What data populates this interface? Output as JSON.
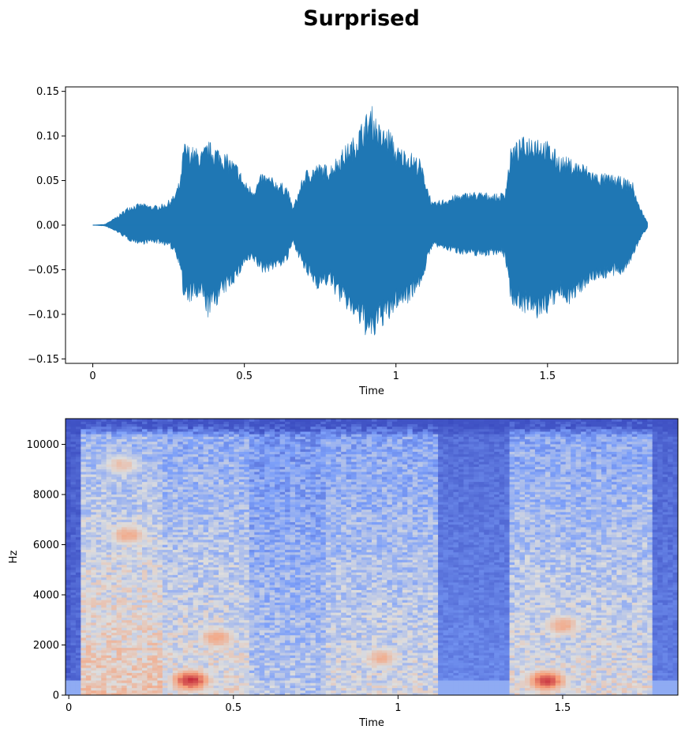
{
  "figure_title": "Surprised",
  "colors": {
    "waveform": "#1f77b4",
    "spec_low": "#3b4cc0",
    "spec_mid": "#dddddd",
    "spec_high": "#b40426",
    "axes": "#000000"
  },
  "chart_data": [
    {
      "type": "area",
      "name": "waveform",
      "title": "",
      "xlabel": "Time",
      "ylabel": "",
      "xlim": [
        -0.09,
        1.93
      ],
      "ylim": [
        -0.155,
        0.155
      ],
      "x_ticks": [
        0,
        0.5,
        1,
        1.5
      ],
      "x_tick_labels": [
        "0",
        "0.5",
        "1",
        "1.5"
      ],
      "y_ticks": [
        0.15,
        0.1,
        0.05,
        0.0,
        -0.05,
        -0.1,
        -0.15
      ],
      "y_tick_labels": [
        "0.15",
        "0.10",
        "0.05",
        "0.00",
        "−0.05",
        "−0.10",
        "−0.15"
      ],
      "grid": false,
      "envelope": {
        "t": [
          0.0,
          0.04,
          0.08,
          0.12,
          0.16,
          0.2,
          0.24,
          0.27,
          0.29,
          0.3,
          0.32,
          0.36,
          0.38,
          0.41,
          0.45,
          0.48,
          0.5,
          0.53,
          0.56,
          0.6,
          0.64,
          0.66,
          0.7,
          0.74,
          0.78,
          0.82,
          0.86,
          0.9,
          0.92,
          0.95,
          0.98,
          1.0,
          1.04,
          1.08,
          1.1,
          1.12,
          1.16,
          1.2,
          1.25,
          1.3,
          1.34,
          1.36,
          1.38,
          1.42,
          1.46,
          1.5,
          1.54,
          1.58,
          1.62,
          1.66,
          1.7,
          1.74,
          1.78,
          1.8,
          1.83
        ],
        "pos": [
          0.0,
          0.001,
          0.01,
          0.022,
          0.025,
          0.022,
          0.025,
          0.035,
          0.055,
          0.095,
          0.09,
          0.085,
          0.095,
          0.09,
          0.078,
          0.068,
          0.05,
          0.042,
          0.06,
          0.052,
          0.045,
          0.02,
          0.062,
          0.07,
          0.068,
          0.085,
          0.1,
          0.125,
          0.135,
          0.11,
          0.11,
          0.09,
          0.085,
          0.075,
          0.05,
          0.025,
          0.03,
          0.035,
          0.038,
          0.037,
          0.035,
          0.04,
          0.09,
          0.1,
          0.105,
          0.095,
          0.08,
          0.075,
          0.07,
          0.06,
          0.058,
          0.055,
          0.05,
          0.025,
          0.003
        ],
        "neg": [
          0.0,
          0.001,
          0.008,
          0.018,
          0.022,
          0.02,
          0.023,
          0.03,
          0.05,
          0.09,
          0.088,
          0.085,
          0.105,
          0.09,
          0.072,
          0.06,
          0.045,
          0.042,
          0.055,
          0.05,
          0.043,
          0.02,
          0.055,
          0.072,
          0.068,
          0.09,
          0.105,
          0.125,
          0.135,
          0.115,
          0.11,
          0.095,
          0.088,
          0.07,
          0.048,
          0.024,
          0.028,
          0.032,
          0.035,
          0.035,
          0.033,
          0.038,
          0.09,
          0.098,
          0.108,
          0.1,
          0.085,
          0.09,
          0.072,
          0.062,
          0.06,
          0.058,
          0.04,
          0.02,
          0.003
        ]
      }
    },
    {
      "type": "heatmap",
      "name": "spectrogram",
      "title": "",
      "xlabel": "Time",
      "ylabel": "Hz",
      "xlim": [
        -0.01,
        1.85
      ],
      "ylim": [
        0,
        11025
      ],
      "x_ticks": [
        0,
        0.5,
        1,
        1.5
      ],
      "x_tick_labels": [
        "0",
        "0.5",
        "1",
        "1.5"
      ],
      "y_ticks": [
        0,
        2000,
        4000,
        6000,
        8000,
        10000
      ],
      "y_tick_labels": [
        "0",
        "2000",
        "4000",
        "6000",
        "8000",
        "10000"
      ],
      "grid": false,
      "colormap": "coolwarm",
      "segments": [
        {
          "t0": 0.0,
          "t1": 0.04,
          "level": 0.1
        },
        {
          "t0": 0.04,
          "t1": 0.28,
          "level": 0.6
        },
        {
          "t0": 0.28,
          "t1": 0.55,
          "level": 0.52
        },
        {
          "t0": 0.55,
          "t1": 0.78,
          "level": 0.4
        },
        {
          "t0": 0.78,
          "t1": 1.12,
          "level": 0.48
        },
        {
          "t0": 1.12,
          "t1": 1.34,
          "level": 0.18
        },
        {
          "t0": 1.34,
          "t1": 1.78,
          "level": 0.5
        },
        {
          "t0": 1.78,
          "t1": 1.85,
          "level": 0.15
        }
      ],
      "hot_spots": [
        {
          "t": 0.37,
          "hz": 600,
          "level": 0.92
        },
        {
          "t": 0.45,
          "hz": 2300,
          "level": 0.72
        },
        {
          "t": 0.95,
          "hz": 1500,
          "level": 0.68
        },
        {
          "t": 1.45,
          "hz": 600,
          "level": 0.9
        },
        {
          "t": 1.5,
          "hz": 2800,
          "level": 0.7
        },
        {
          "t": 0.18,
          "hz": 6400,
          "level": 0.7
        },
        {
          "t": 0.16,
          "hz": 9200,
          "level": 0.62
        }
      ]
    }
  ]
}
